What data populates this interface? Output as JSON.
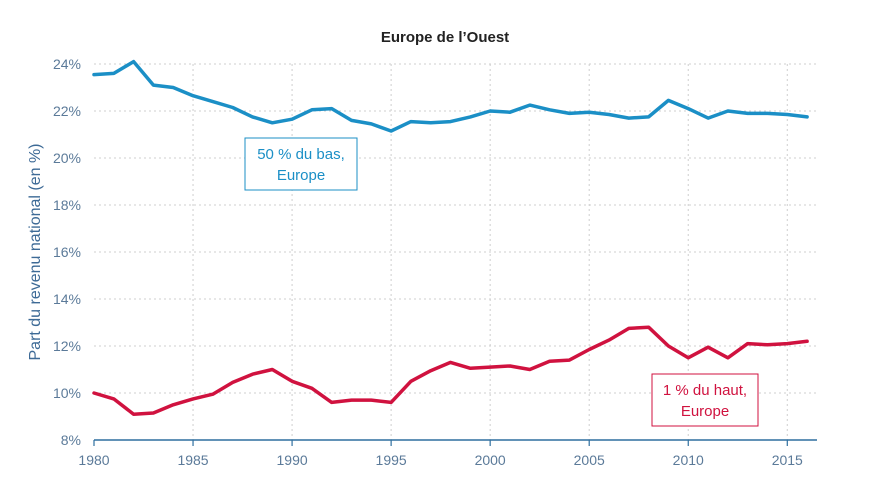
{
  "chart_data": {
    "type": "line",
    "title": "Europe de l’Ouest",
    "xlabel": "",
    "ylabel": "Part du revenu national (en %)",
    "xlim": [
      1980,
      2016.5
    ],
    "ylim": [
      8,
      24
    ],
    "x_ticks": [
      1980,
      1985,
      1990,
      1995,
      2000,
      2005,
      2010,
      2015
    ],
    "y_ticks": [
      8,
      10,
      12,
      14,
      16,
      18,
      20,
      22,
      24
    ],
    "y_tick_labels": [
      "8%",
      "10%",
      "12%",
      "14%",
      "16%",
      "18%",
      "20%",
      "22%",
      "24%"
    ],
    "grid": true,
    "x": [
      1980,
      1981,
      1982,
      1983,
      1984,
      1985,
      1986,
      1987,
      1988,
      1989,
      1990,
      1991,
      1992,
      1993,
      1994,
      1995,
      1996,
      1997,
      1998,
      1999,
      2000,
      2001,
      2002,
      2003,
      2004,
      2005,
      2006,
      2007,
      2008,
      2009,
      2010,
      2011,
      2012,
      2013,
      2014,
      2015,
      2016
    ],
    "series": [
      {
        "name": "50 % du bas, Europe",
        "color": "#1b8fc6",
        "values": [
          23.55,
          23.6,
          24.1,
          23.1,
          23.0,
          22.65,
          22.4,
          22.15,
          21.75,
          21.5,
          21.65,
          22.05,
          22.1,
          21.6,
          21.45,
          21.15,
          21.55,
          21.5,
          21.55,
          21.75,
          22.0,
          21.95,
          22.25,
          22.05,
          21.9,
          21.95,
          21.85,
          21.7,
          21.75,
          22.45,
          22.1,
          21.7,
          22.0,
          21.9,
          21.9,
          21.85,
          21.75
        ]
      },
      {
        "name": "1 % du haut, Europe",
        "color": "#d0123f",
        "values": [
          10.0,
          9.75,
          9.1,
          9.15,
          9.5,
          9.75,
          9.95,
          10.45,
          10.8,
          11.0,
          10.5,
          10.2,
          9.6,
          9.7,
          9.7,
          9.6,
          10.5,
          10.95,
          11.3,
          11.05,
          11.1,
          11.15,
          11.0,
          11.35,
          11.4,
          11.85,
          12.25,
          12.75,
          12.8,
          12.0,
          11.5,
          11.95,
          11.5,
          12.1,
          12.05,
          12.1,
          12.2
        ]
      }
    ],
    "annotations": [
      {
        "series": "bottom50",
        "lines": [
          "50 % du bas,",
          "Europe"
        ],
        "color": "#1b8fc6"
      },
      {
        "series": "top1",
        "lines": [
          "1 % du haut,",
          "Europe"
        ],
        "color": "#d0123f"
      }
    ]
  }
}
